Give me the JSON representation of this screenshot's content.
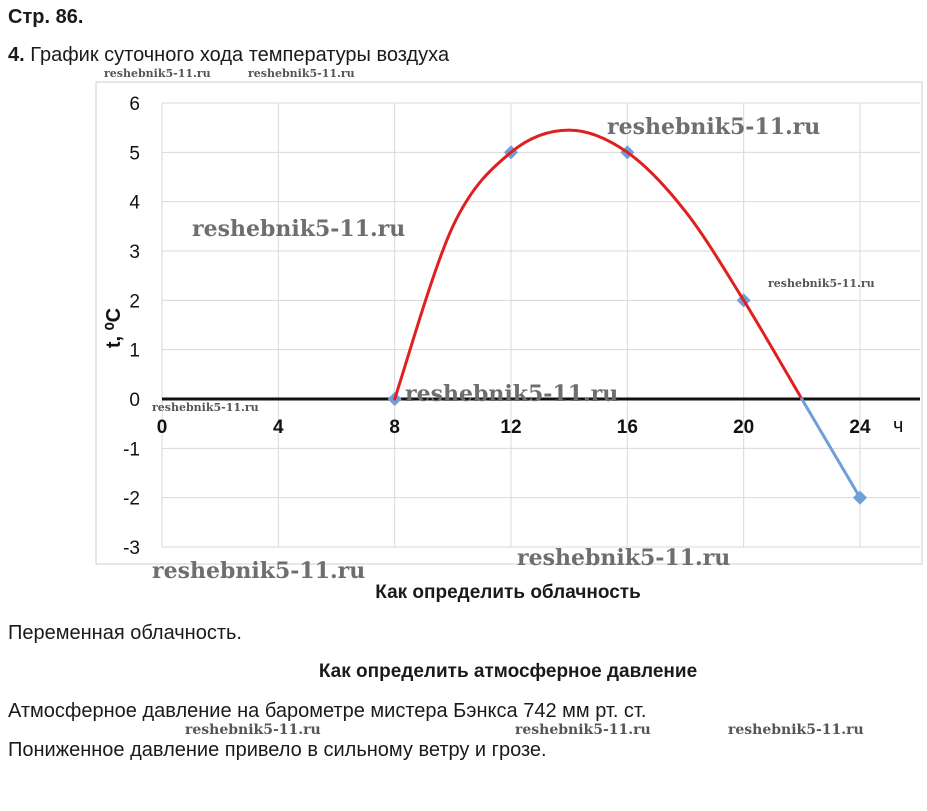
{
  "page_ref": "Стр. 86.",
  "task": {
    "number": "4.",
    "title": "График суточного хода температуры воздуха"
  },
  "chart_data": {
    "type": "line",
    "xlabel": "ч",
    "ylabel": "t, ⁰C",
    "xlim": [
      0,
      24
    ],
    "ylim": [
      -3,
      6
    ],
    "x_ticks": [
      "0",
      "4",
      "8",
      "12",
      "16",
      "20",
      "24"
    ],
    "y_ticks": [
      "6",
      "5",
      "4",
      "3",
      "2",
      "1",
      "0",
      "-1",
      "-2",
      "-3"
    ],
    "grid": true,
    "series": [
      {
        "x": [
          0,
          4,
          8,
          12,
          16,
          20,
          24
        ],
        "y": [
          0,
          0,
          0,
          5,
          5,
          2,
          -2
        ],
        "color": "#6f9fd8",
        "markers": true
      },
      {
        "x": [
          8,
          10,
          12,
          14,
          16,
          18,
          20,
          22
        ],
        "y": [
          0,
          3.5,
          5.0,
          5.45,
          5.0,
          3.8,
          2.0,
          0
        ],
        "color": "#e02020",
        "smooth": true
      },
      {
        "x": [
          22,
          24
        ],
        "y": [
          0,
          -2
        ],
        "color": "#6f9fd8"
      }
    ],
    "axis_line_color": "#111111"
  },
  "sections": [
    {
      "heading": "Как определить облачность",
      "text": [
        "Переменная облачность."
      ]
    },
    {
      "heading": "Как определить атмосферное давление",
      "text": [
        "Атмосферное давление на барометре мистера Бэнкса 742 мм рт. ст.",
        "Пониженное давление привело в сильному ветру и грозе."
      ]
    }
  ],
  "watermarks": {
    "big": "reshebnik5-11.ru",
    "small": "reshebnik5-11.ru"
  }
}
